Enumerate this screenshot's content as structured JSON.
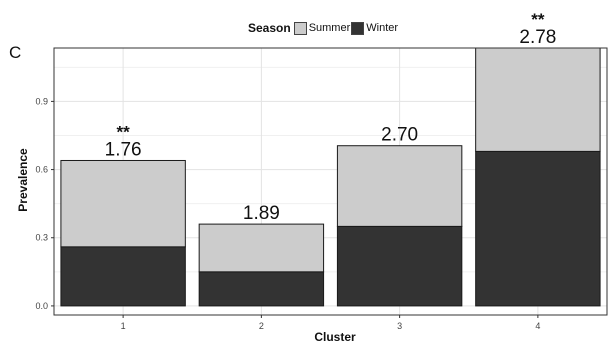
{
  "panel_label": "C",
  "legend": {
    "title": "Season",
    "items": [
      {
        "label": "Summer",
        "color": "#cccccc"
      },
      {
        "label": "Winter",
        "color": "#333333"
      }
    ]
  },
  "chart_data": {
    "type": "bar",
    "stacked": true,
    "categories": [
      "1",
      "2",
      "3",
      "4"
    ],
    "series": [
      {
        "name": "Winter",
        "color": "#333333",
        "values": [
          0.26,
          0.15,
          0.35,
          0.68
        ]
      },
      {
        "name": "Summer",
        "color": "#cccccc",
        "values": [
          0.38,
          0.21,
          0.355,
          0.455
        ]
      }
    ],
    "annotations": [
      {
        "category": "1",
        "label": "1.76",
        "significance": "**"
      },
      {
        "category": "2",
        "label": "1.89",
        "significance": ""
      },
      {
        "category": "3",
        "label": "2.70",
        "significance": ""
      },
      {
        "category": "4",
        "label": "2.78",
        "significance": "**"
      }
    ],
    "xlabel": "Cluster",
    "ylabel": "Prevalence",
    "ylim": [
      -0.04,
      1.135
    ],
    "yticks": [
      0.0,
      0.3,
      0.6,
      0.9
    ],
    "ytick_labels": [
      "0.0",
      "0.3",
      "0.6",
      "0.9"
    ],
    "grid": true,
    "legend_position": "top"
  }
}
